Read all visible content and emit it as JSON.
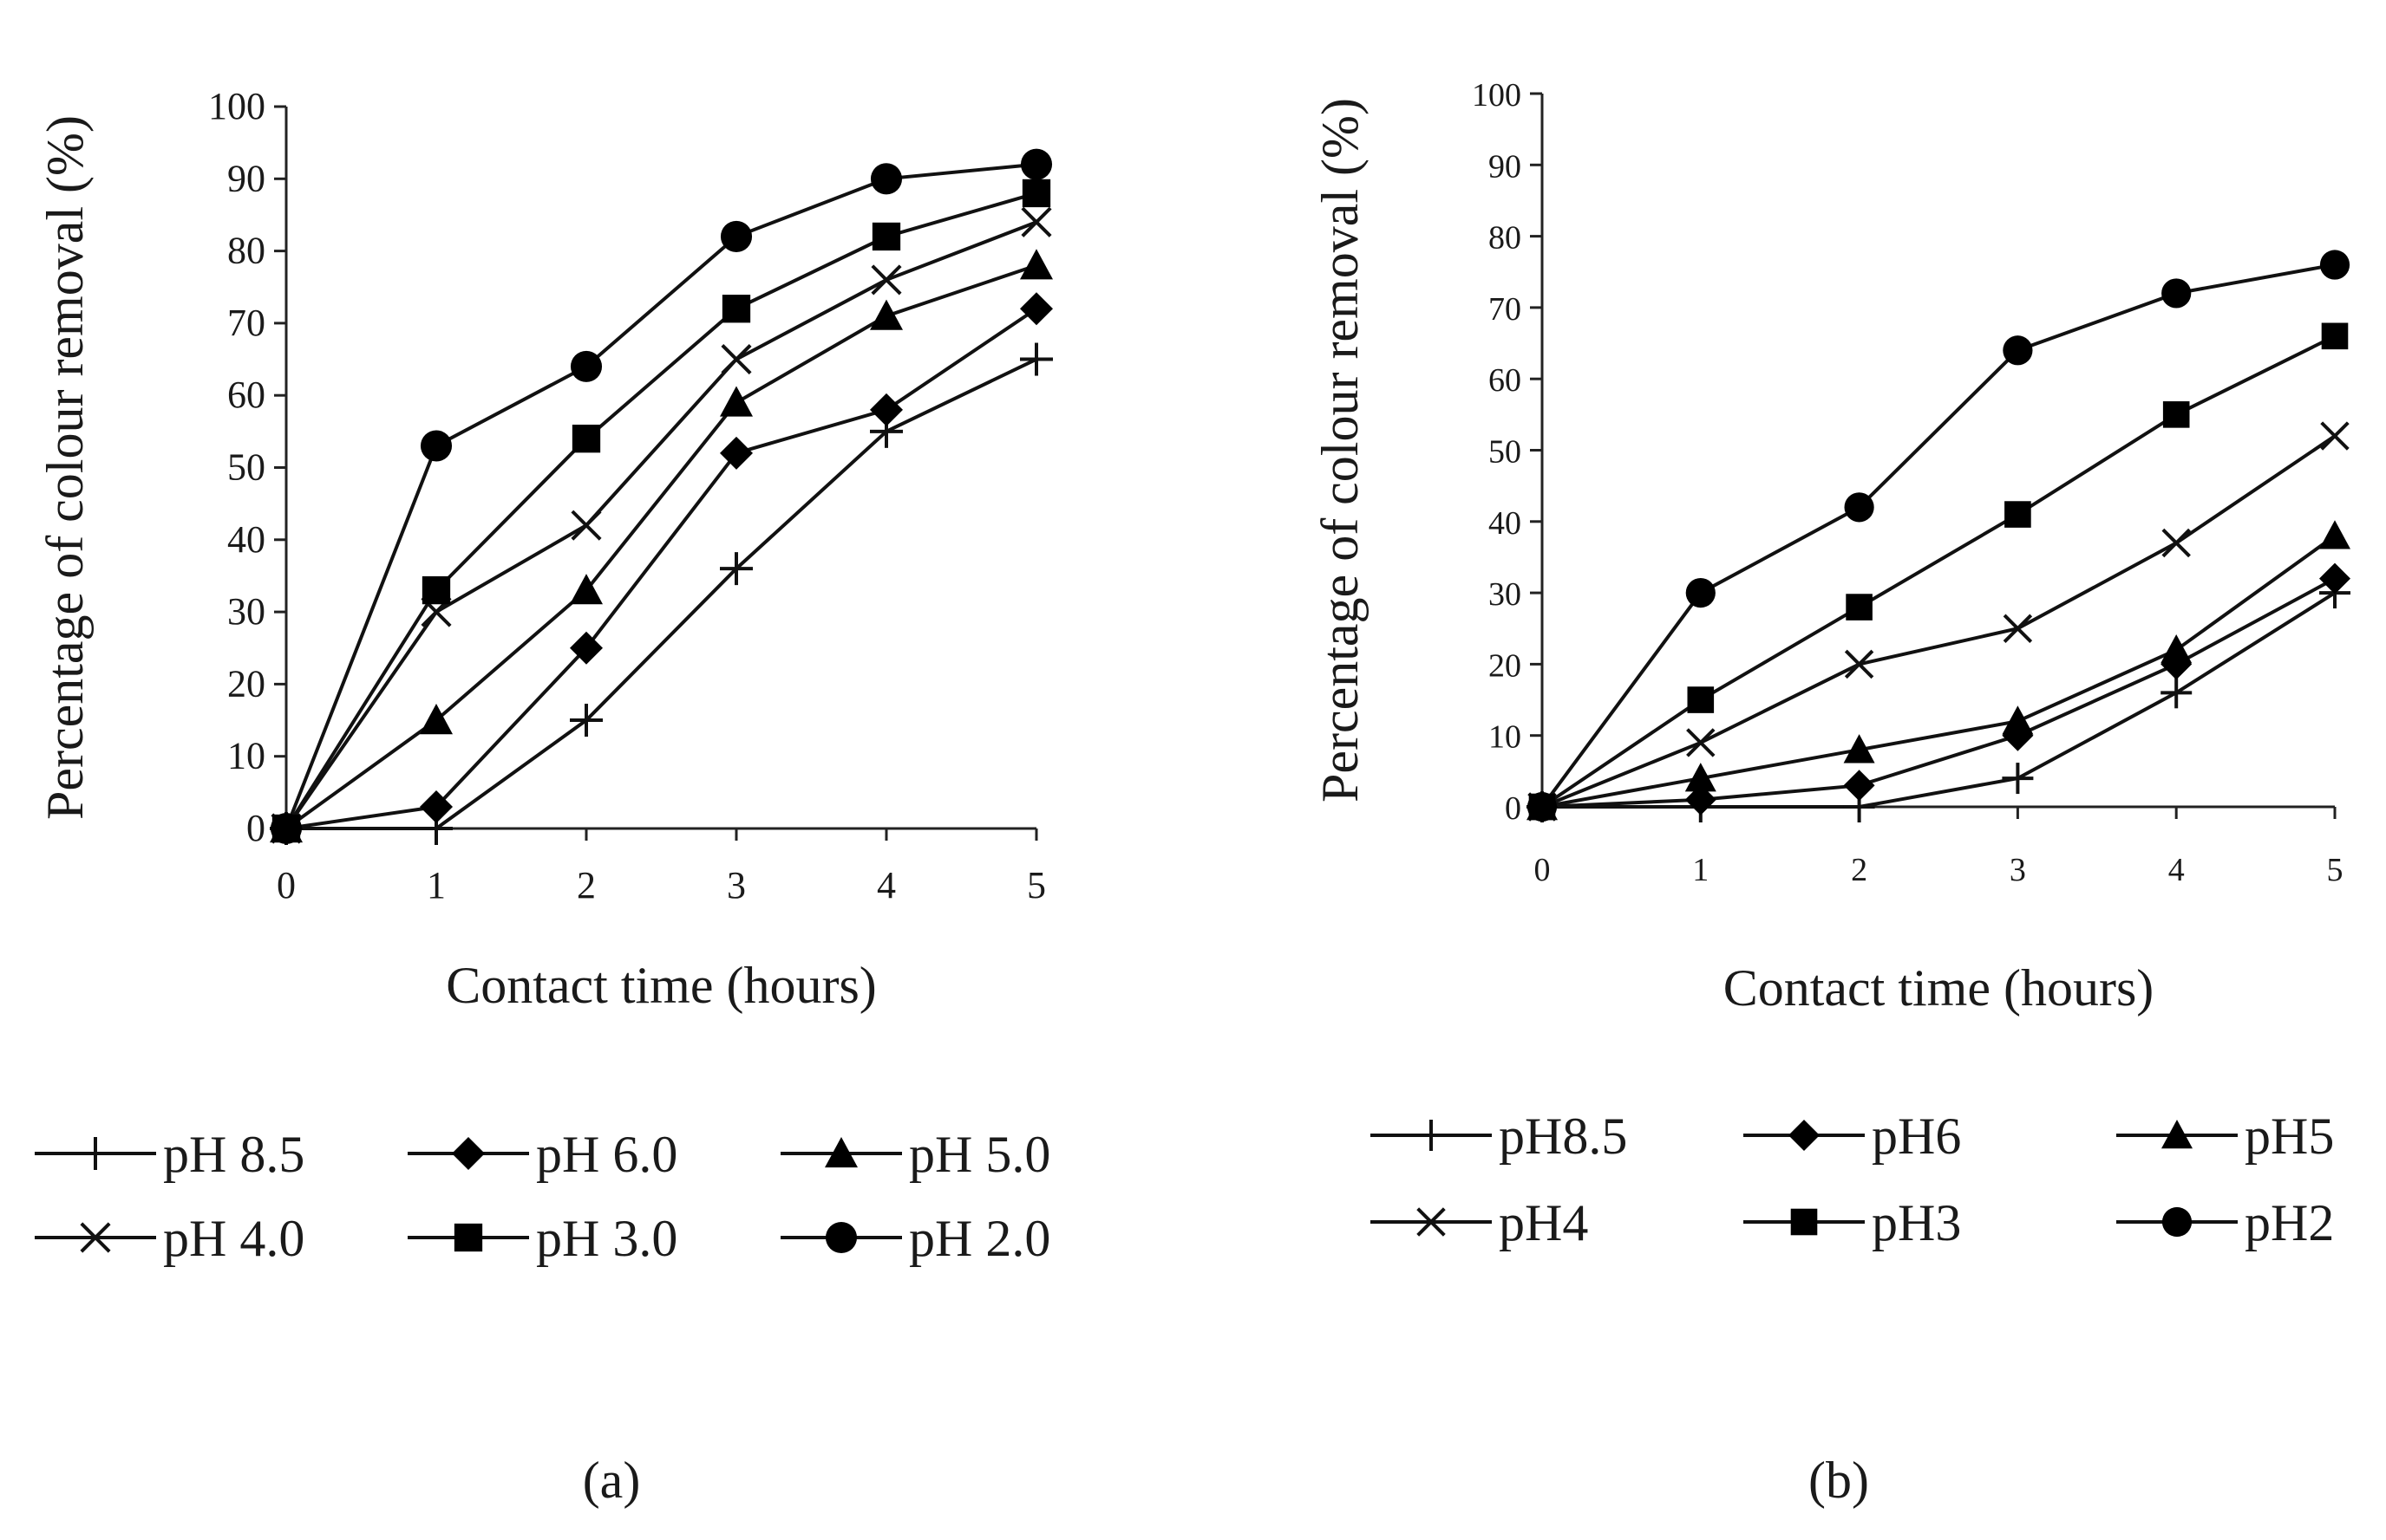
{
  "figure": {
    "description_labels": [
      "(a)",
      "(b)"
    ]
  },
  "chart_data": [
    {
      "type": "line",
      "panel": "(a)",
      "title": "",
      "xlabel": "Contact time (hours)",
      "ylabel": "Percentage of colour removal (%)",
      "x": [
        0,
        1,
        2,
        3,
        4,
        5
      ],
      "xlim": [
        0,
        5
      ],
      "ylim": [
        0,
        100
      ],
      "xticks": [
        "0",
        "1",
        "2",
        "3",
        "4",
        "5"
      ],
      "yticks": [
        "0",
        "10",
        "20",
        "30",
        "40",
        "50",
        "60",
        "70",
        "80",
        "90",
        "100"
      ],
      "grid": false,
      "legend_position": "bottom",
      "series": [
        {
          "name": "pH 8.5",
          "marker": "plus",
          "values": [
            0,
            0,
            15,
            36,
            55,
            65
          ]
        },
        {
          "name": "pH 6.0",
          "marker": "diamond",
          "values": [
            0,
            3,
            25,
            52,
            58,
            72
          ]
        },
        {
          "name": "pH 5.0",
          "marker": "triangle",
          "values": [
            0,
            15,
            33,
            59,
            71,
            78
          ]
        },
        {
          "name": "pH 4.0",
          "marker": "cross",
          "values": [
            0,
            30,
            42,
            65,
            76,
            84
          ]
        },
        {
          "name": "pH 3.0",
          "marker": "square",
          "values": [
            0,
            33,
            54,
            72,
            82,
            88
          ]
        },
        {
          "name": "pH 2.0",
          "marker": "circle",
          "values": [
            0,
            53,
            64,
            82,
            90,
            92
          ]
        }
      ]
    },
    {
      "type": "line",
      "panel": "(b)",
      "title": "",
      "xlabel": "Contact time (hours)",
      "ylabel": "Percentage of colour removal (%)",
      "x": [
        0,
        1,
        2,
        3,
        4,
        5
      ],
      "xlim": [
        0,
        5
      ],
      "ylim": [
        0,
        100
      ],
      "xticks": [
        "0",
        "1",
        "2",
        "3",
        "4",
        "5"
      ],
      "yticks": [
        "0",
        "10",
        "20",
        "30",
        "40",
        "50",
        "60",
        "70",
        "80",
        "90",
        "100"
      ],
      "grid": false,
      "legend_position": "bottom",
      "series": [
        {
          "name": "pH8.5",
          "marker": "plus",
          "values": [
            0,
            0,
            0,
            4,
            16,
            30
          ]
        },
        {
          "name": "pH6",
          "marker": "diamond",
          "values": [
            0,
            1,
            3,
            10,
            20,
            32
          ]
        },
        {
          "name": "pH5",
          "marker": "triangle",
          "values": [
            0,
            4,
            8,
            12,
            22,
            38
          ]
        },
        {
          "name": "pH4",
          "marker": "cross",
          "values": [
            0,
            9,
            20,
            25,
            37,
            52
          ]
        },
        {
          "name": "pH3",
          "marker": "square",
          "values": [
            0,
            15,
            28,
            41,
            55,
            66
          ]
        },
        {
          "name": "pH2",
          "marker": "circle",
          "values": [
            0,
            30,
            42,
            64,
            72,
            76
          ]
        }
      ]
    }
  ]
}
